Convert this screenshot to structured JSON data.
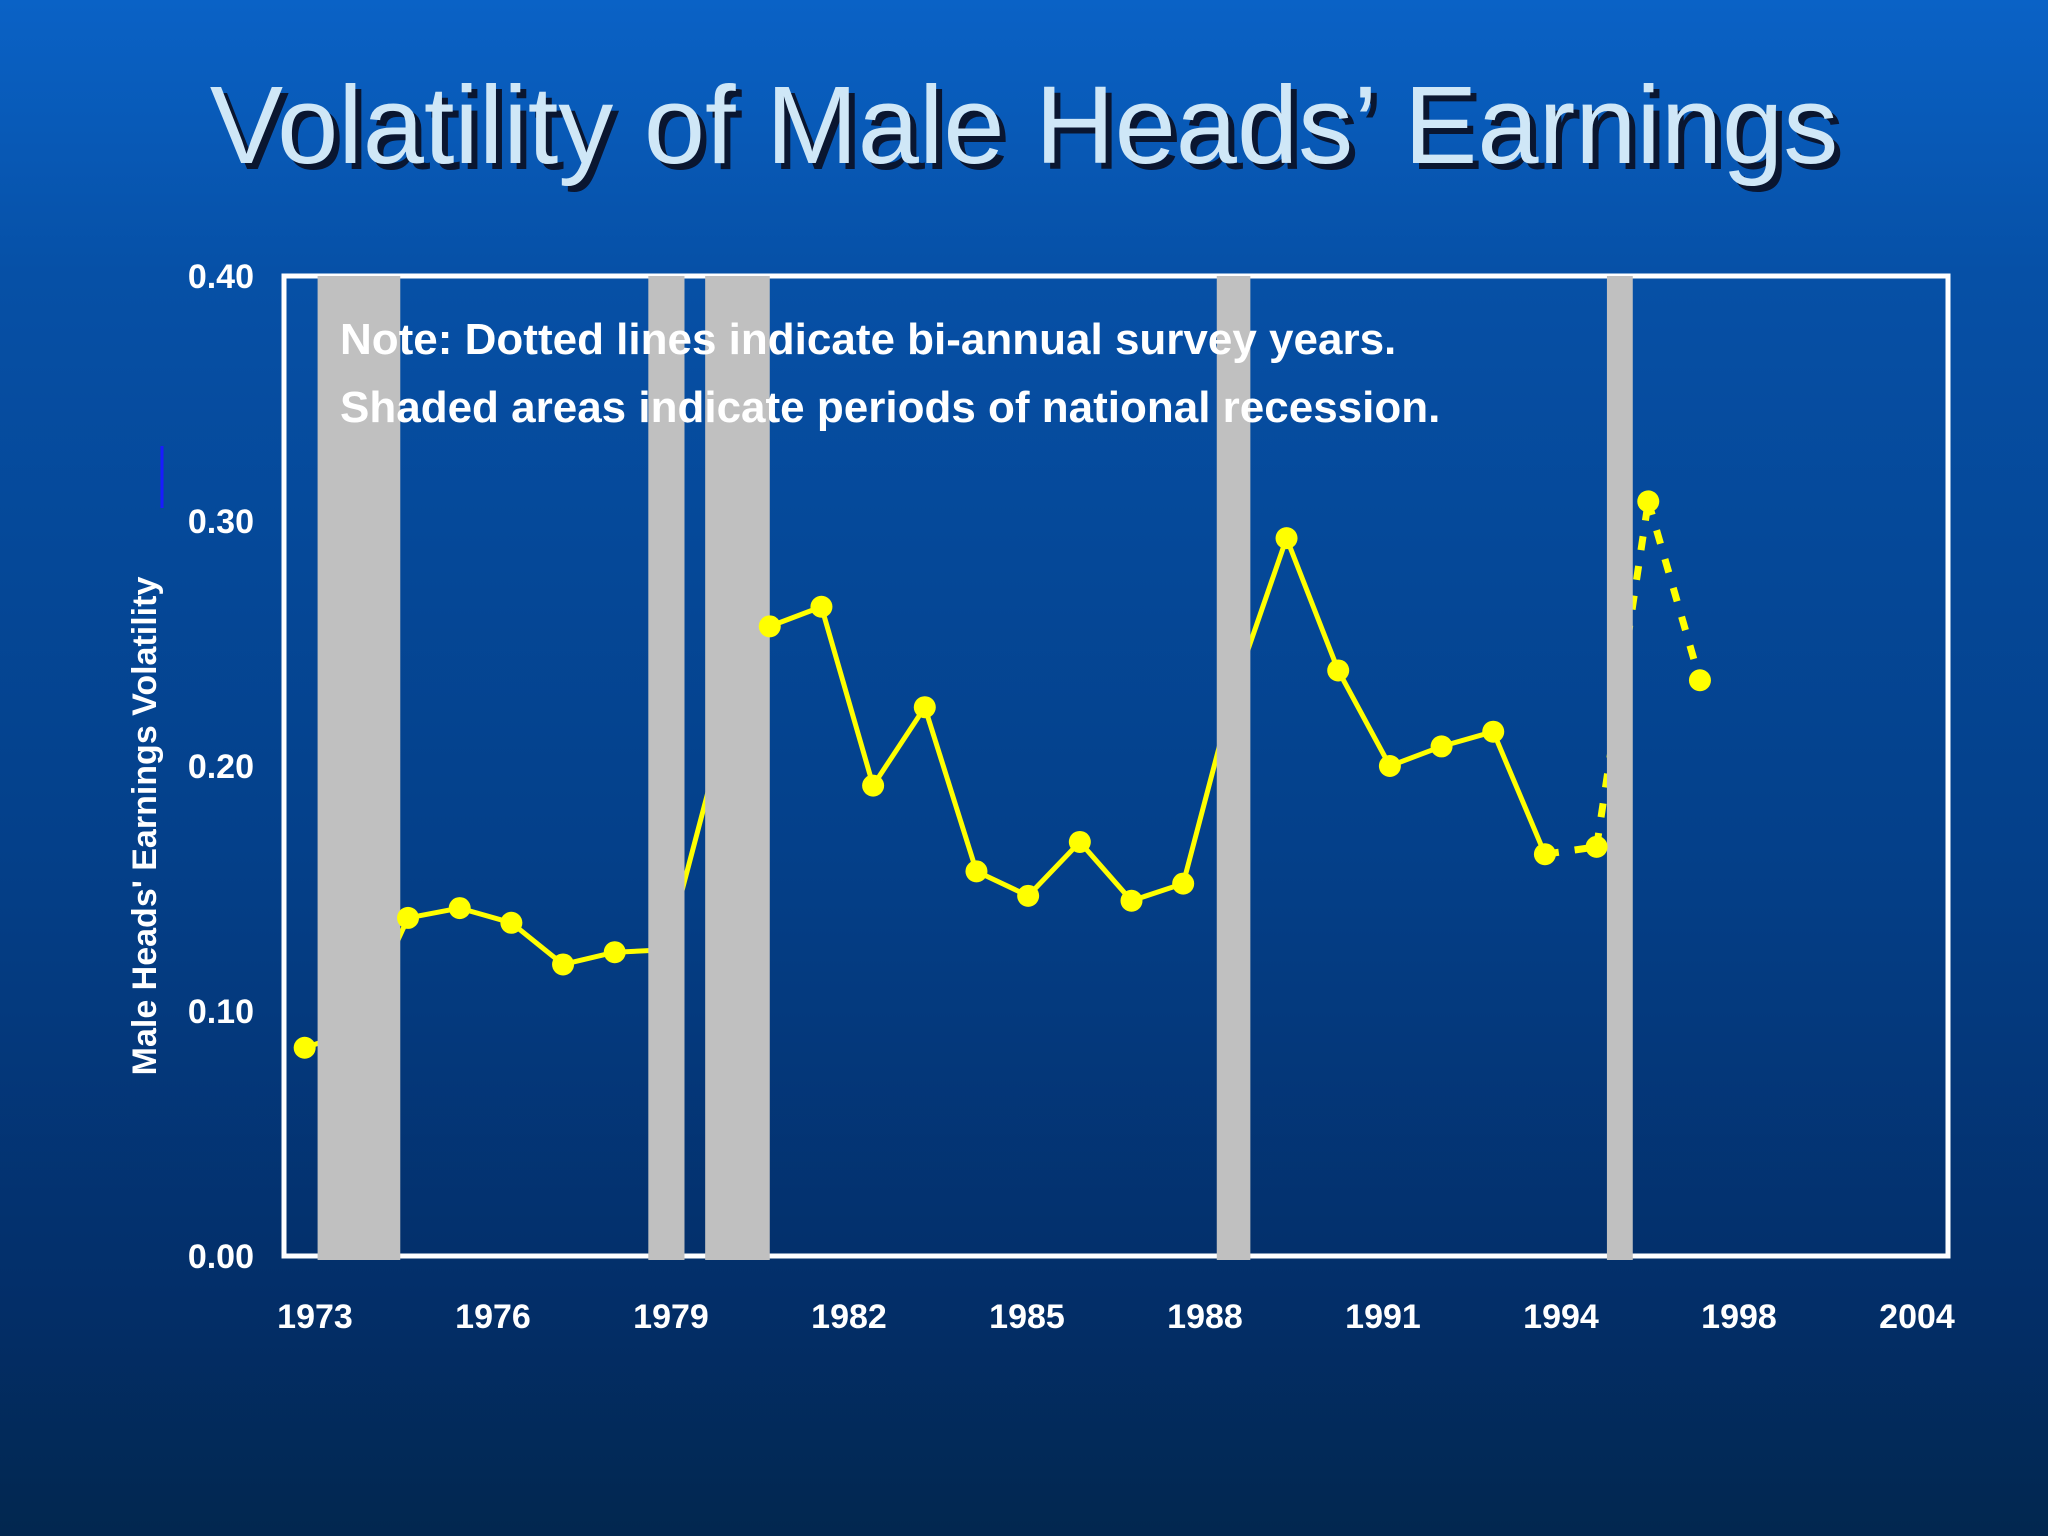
{
  "slide": {
    "title": "Volatility of Male Heads’ Earnings"
  },
  "colors": {
    "series": "#ffff00",
    "recession": "#c0c0c0",
    "frame": "#ffffff",
    "text": "#ffffff",
    "title": "#cfe7f7"
  },
  "chart_data": {
    "type": "line",
    "title": "",
    "xlabel": "",
    "ylabel": "Male Heads' Earnings Volatility",
    "ylim": [
      0,
      0.4
    ],
    "xlim": [
      1972.6,
      2004.8
    ],
    "y_ticks": [
      "0.00",
      "0.10",
      "0.20",
      "0.30",
      "0.40"
    ],
    "x_ticks": [
      {
        "label": "1973",
        "year": 1973
      },
      {
        "label": "1976",
        "year": 1976
      },
      {
        "label": "1979",
        "year": 1979
      },
      {
        "label": "1982",
        "year": 1982
      },
      {
        "label": "1985",
        "year": 1985
      },
      {
        "label": "1988",
        "year": 1988
      },
      {
        "label": "1991",
        "year": 1991
      },
      {
        "label": "1994",
        "year": 1994
      },
      {
        "label": "1998",
        "year": 1998
      },
      {
        "label": "2004",
        "year": 2004
      }
    ],
    "grid": false,
    "notes": [
      "Note: Dotted lines indicate bi-annual survey years.",
      "Shaded areas indicate periods of national recession."
    ],
    "series": [
      {
        "points": [
          {
            "x": 1973,
            "y": 0.085
          },
          {
            "x": 1974,
            "y": 0.092
          },
          {
            "x": 1975,
            "y": 0.138
          },
          {
            "x": 1976,
            "y": 0.142
          },
          {
            "x": 1977,
            "y": 0.136
          },
          {
            "x": 1978,
            "y": 0.119
          },
          {
            "x": 1979,
            "y": 0.124
          },
          {
            "x": 1980,
            "y": 0.125
          },
          {
            "x": 1981,
            "y": 0.205
          },
          {
            "x": 1982,
            "y": 0.257
          },
          {
            "x": 1983,
            "y": 0.265
          },
          {
            "x": 1984,
            "y": 0.192
          },
          {
            "x": 1985,
            "y": 0.224
          },
          {
            "x": 1986,
            "y": 0.157
          },
          {
            "x": 1987,
            "y": 0.147
          },
          {
            "x": 1988,
            "y": 0.169
          },
          {
            "x": 1989,
            "y": 0.145
          },
          {
            "x": 1990,
            "y": 0.152
          },
          {
            "x": 1991,
            "y": 0.232
          },
          {
            "x": 1992,
            "y": 0.293
          },
          {
            "x": 1993,
            "y": 0.239
          },
          {
            "x": 1994,
            "y": 0.2
          },
          {
            "x": 1995,
            "y": 0.208
          },
          {
            "x": 1996,
            "y": 0.214
          },
          {
            "x": 1997,
            "y": 0.164
          },
          {
            "x": 1998,
            "y": 0.167
          },
          {
            "x": 1999,
            "y": 0.308
          },
          {
            "x": 2000,
            "y": 0.235
          }
        ],
        "dotted_from_index": 24,
        "hidden_markers": [
          1,
          7,
          8,
          18
        ]
      }
    ],
    "recessions": [
      {
        "start": 1973.25,
        "end": 1974.85
      },
      {
        "start": 1979.65,
        "end": 1980.35
      },
      {
        "start": 1980.75,
        "end": 1982.0
      },
      {
        "start": 1990.65,
        "end": 1991.3
      },
      {
        "start": 1998.2,
        "end": 1998.7
      }
    ]
  }
}
